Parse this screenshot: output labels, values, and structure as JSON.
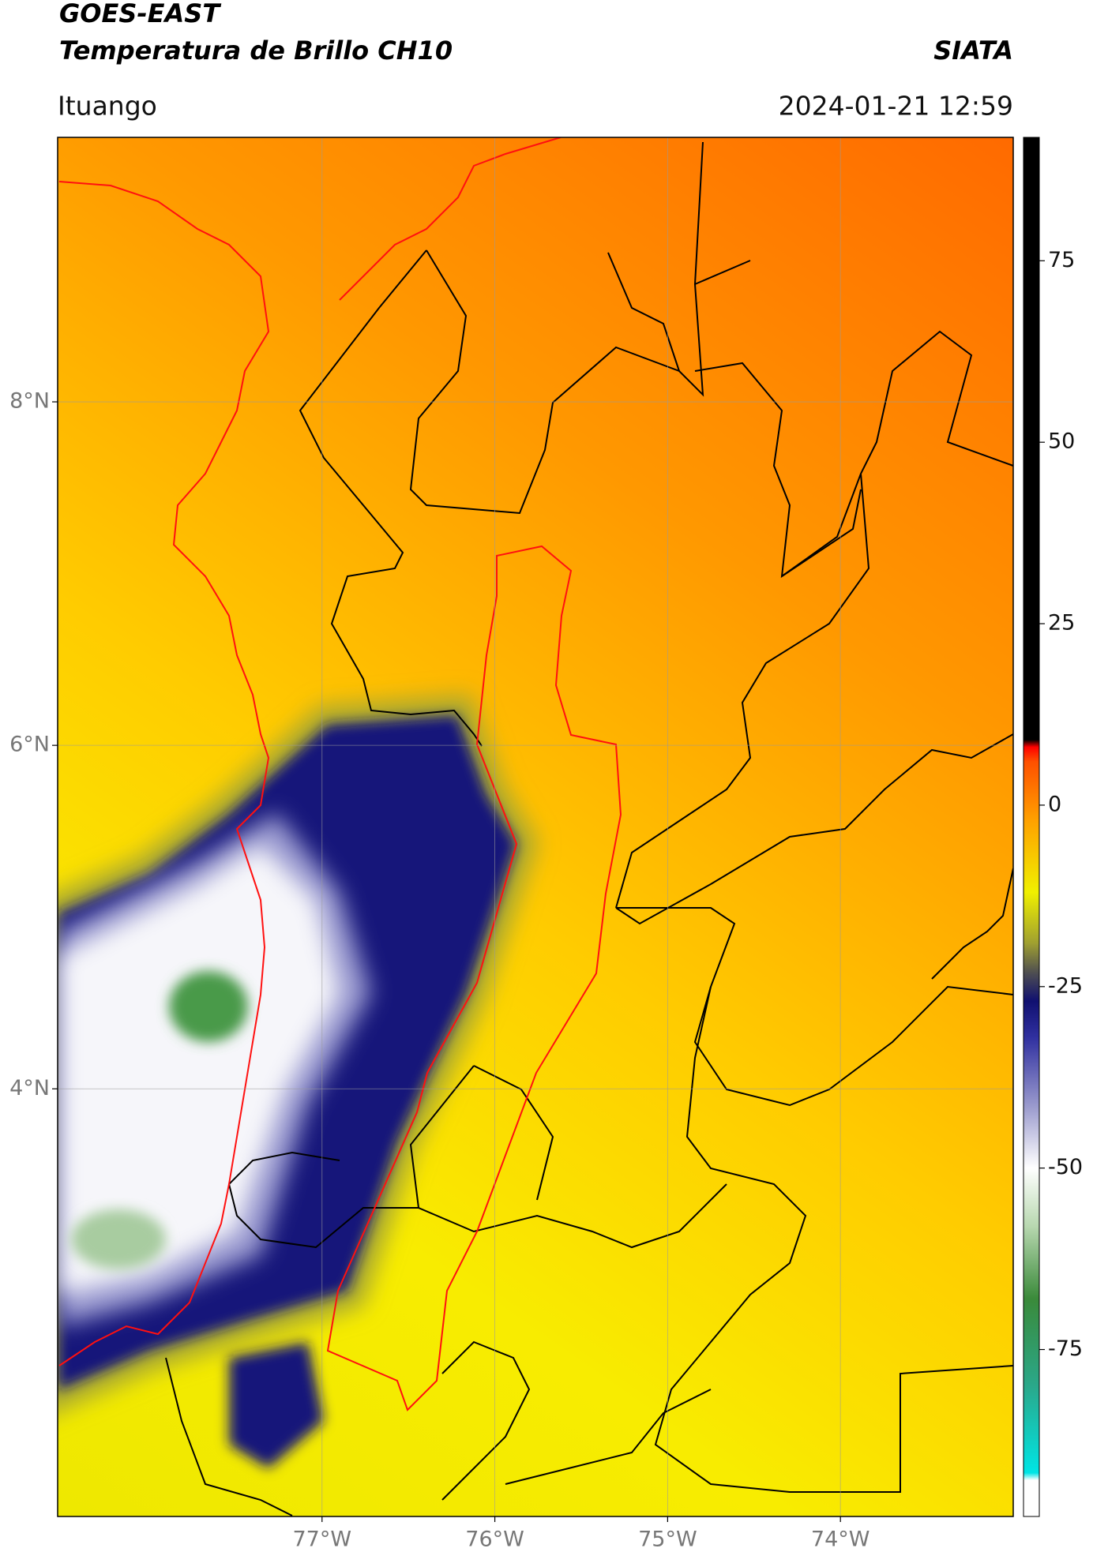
{
  "map": {
    "title": "GOES-EAST",
    "subtitle": "Temperatura de Brillo CH10",
    "source": "SIATA",
    "location": "Ituango",
    "datetime": "2024-01-21 12:59",
    "xlim": [
      -78.53,
      -73.0
    ],
    "ylim": [
      1.51,
      9.54
    ],
    "xticks": [
      {
        "value": -77,
        "label": "77°W"
      },
      {
        "value": -76,
        "label": "76°W"
      },
      {
        "value": -75,
        "label": "75°W"
      },
      {
        "value": -74,
        "label": "74°W"
      }
    ],
    "yticks": [
      {
        "value": 8,
        "label": "8°N"
      },
      {
        "value": 6,
        "label": "6°N"
      },
      {
        "value": 4,
        "label": "4°N"
      }
    ],
    "grid": true,
    "colorbar": {
      "lim": [
        -98,
        92
      ],
      "ticks": [
        75,
        50,
        25,
        0,
        -25,
        -50,
        -75
      ],
      "stops": [
        {
          "value": -98,
          "color": "#ffffff"
        },
        {
          "value": -93,
          "color": "#ffffff"
        },
        {
          "value": -92,
          "color": "#00e5e5"
        },
        {
          "value": -80,
          "color": "#2aa88a"
        },
        {
          "value": -68,
          "color": "#3a8a3a"
        },
        {
          "value": -58,
          "color": "#b8d8b0"
        },
        {
          "value": -50,
          "color": "#ffffff"
        },
        {
          "value": -42,
          "color": "#a0a0d0"
        },
        {
          "value": -32,
          "color": "#3030a0"
        },
        {
          "value": -27,
          "color": "#101070"
        },
        {
          "value": -23,
          "color": "#505050"
        },
        {
          "value": -19,
          "color": "#a0a030"
        },
        {
          "value": -12,
          "color": "#f0f000"
        },
        {
          "value": -2,
          "color": "#ffa000"
        },
        {
          "value": 6,
          "color": "#ff5000"
        },
        {
          "value": 8,
          "color": "#ff0000"
        },
        {
          "value": 9,
          "color": "#000000"
        },
        {
          "value": 92,
          "color": "#000000"
        }
      ]
    }
  }
}
